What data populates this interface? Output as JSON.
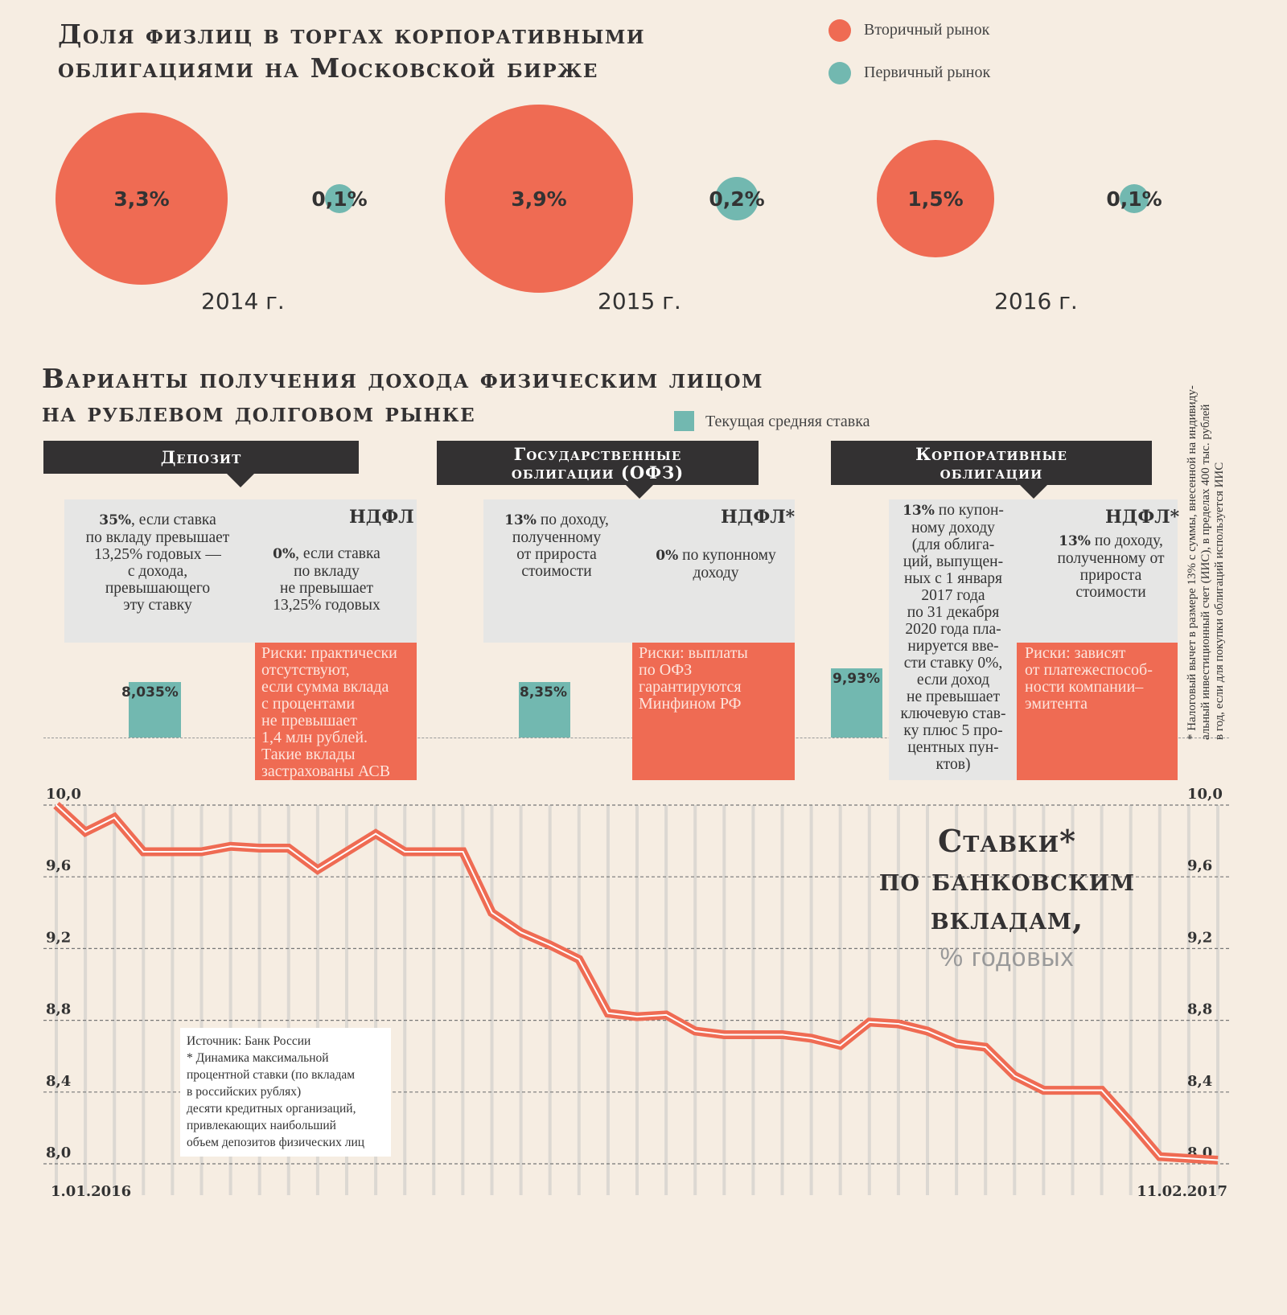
{
  "top": {
    "title": "Доля физлиц в торгах корпоративными\nоблигациями на Московской бирже",
    "legend": [
      {
        "label": "Вторичный рынок",
        "color": "#ef6b53"
      },
      {
        "label": "Первичный рынок",
        "color": "#72b8b0"
      }
    ],
    "years": [
      {
        "year": "2014 г.",
        "secondary": "3,3%",
        "primary": "0,1%"
      },
      {
        "year": "2015 г.",
        "secondary": "3,9%",
        "primary": "0,2%"
      },
      {
        "year": "2016 г.",
        "secondary": "1,5%",
        "primary": "0,1%"
      }
    ]
  },
  "options": {
    "title": "Варианты получения дохода физическим лицом\nна рублевом долговом рынке",
    "legend": {
      "label": "Текущая средняя ставка",
      "color": "#72b8b0"
    },
    "deposit": {
      "header": "Депозит",
      "ndfl": "НДФЛ",
      "left_bold": "35%",
      "left_text": ", если ставка\nпо вкладу превышает\n13,25% годовых —\nс дохода,\nпревышающего\nэту ставку",
      "right_bold": "0%",
      "right_text": ", если ставка\nпо вкладу\nне превышает\n13,25% годовых",
      "rate": "8,035%",
      "risk": "Риски: практически\nотсутствуют,\nесли сумма вклада\nс процентами\nне превышает\n1,4 млн рублей.\nТакие вклады\nзастрахованы АСВ"
    },
    "ofz": {
      "header": "Государственные\nоблигации (ОФЗ)",
      "ndfl": "НДФЛ*",
      "left_bold": "13%",
      "left_text": " по доходу,\nполученному\nот прироста\nстоимости",
      "right_bold": "0%",
      "right_text": " по купонному\nдоходу",
      "rate": "8,35%",
      "risk": "Риски: выплаты\nпо ОФЗ\nгарантируются\nМинфином РФ"
    },
    "corporate": {
      "header": "Корпоративные\nоблигации",
      "ndfl": "НДФЛ*",
      "left_bold": "13%",
      "left_text": " по купон-\nному доходу\n(для облига-\nций, выпущен-\nных с 1 января\n2017 года\nпо 31 декабря\n2020 года пла-\nнируется вве-\nсти ставку 0%,\nесли доход\nне превышает\nключевую став-\nку плюс 5 про-\nцентных пун-\nктов)",
      "right_bold": "13%",
      "right_text": " по доходу,\nполученному от\nприроста\nстоимости",
      "rate": "9,93%",
      "risk": "Риски: зависят\nот платежеспособ-\nности компании–\nэмитента"
    },
    "footnote": "* Налоговый вычет в размере 13% с суммы, внесенной на индивиду-\nальный инвестиционный счет (ИИС), в пределах 400 тыс. рублей\nв год, если для покупки облигаций используется ИИС"
  },
  "chart_data": {
    "type": "line",
    "title": "Ставки*\nпо банковским\nвкладам,",
    "subtitle": "% годовых",
    "x_start": "1.01.2016",
    "x_end": "11.02.2017",
    "yticks": [
      "10,0",
      "9,6",
      "9,2",
      "8,8",
      "8,4",
      "8,0"
    ],
    "ylim": [
      8.0,
      10.0
    ],
    "grid": true,
    "series": [
      {
        "color": "#ef6b53",
        "values": [
          10.0,
          9.85,
          9.93,
          9.74,
          9.74,
          9.74,
          9.77,
          9.76,
          9.76,
          9.64,
          9.74,
          9.84,
          9.74,
          9.74,
          9.74,
          9.4,
          9.29,
          9.22,
          9.14,
          8.84,
          8.82,
          8.83,
          8.74,
          8.72,
          8.72,
          8.72,
          8.7,
          8.66,
          8.79,
          8.78,
          8.74,
          8.67,
          8.65,
          8.49,
          8.41,
          8.41,
          8.41,
          8.23,
          8.04,
          8.03,
          8.02
        ]
      }
    ],
    "source": "Источник: Банк России",
    "note": "* Динамика максимальной\nпроцентной ставки (по вкладам\nв российских рублях)\nдесяти кредитных организаций,\nпривлекающих наибольший\nобъем депозитов физических лиц"
  }
}
